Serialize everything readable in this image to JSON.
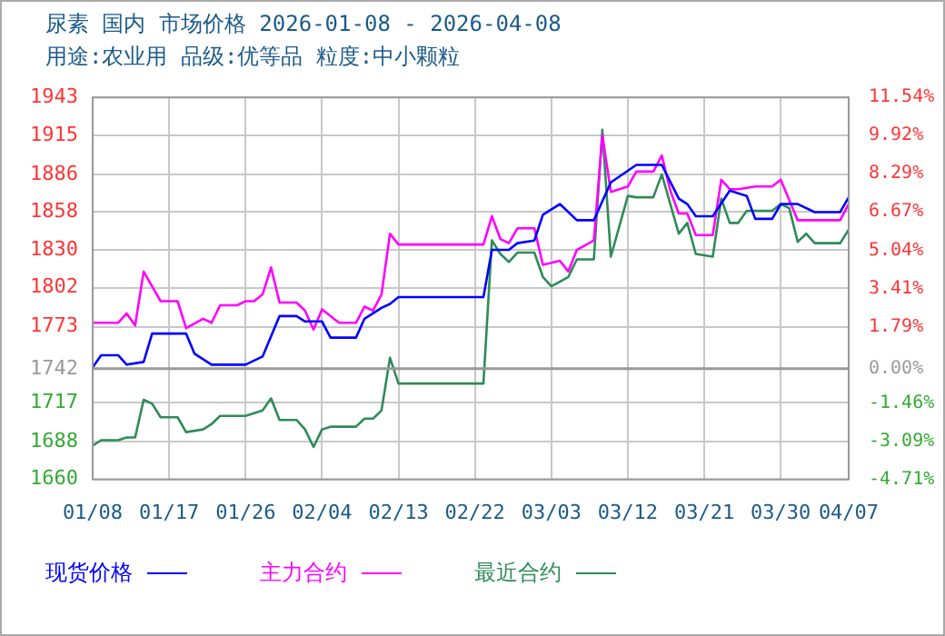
{
  "chart_data": {
    "type": "line",
    "title": "尿素 国内 市场价格 2026-01-08 - 2026-04-08",
    "subtitle": "用途:农业用 品级:优等品 粒度:中小颗粒",
    "xlim": [
      "2026-01-08",
      "2026-04-07"
    ],
    "xticks": [
      {
        "value": "2026-01-08",
        "label": "01/08"
      },
      {
        "value": "2026-01-17",
        "label": "01/17"
      },
      {
        "value": "2026-01-26",
        "label": "01/26"
      },
      {
        "value": "2026-02-04",
        "label": "02/04"
      },
      {
        "value": "2026-02-13",
        "label": "02/13"
      },
      {
        "value": "2026-02-22",
        "label": "02/22"
      },
      {
        "value": "2026-03-03",
        "label": "03/03"
      },
      {
        "value": "2026-03-12",
        "label": "03/12"
      },
      {
        "value": "2026-03-21",
        "label": "03/21"
      },
      {
        "value": "2026-03-30",
        "label": "03/30"
      },
      {
        "value": "2026-04-07",
        "label": "04/07"
      }
    ],
    "ylim": [
      1660,
      1943
    ],
    "yticks": [
      1660,
      1688,
      1717,
      1742,
      1773,
      1802,
      1830,
      1858,
      1886,
      1915,
      1943
    ],
    "y2lim": [
      -4.71,
      11.54
    ],
    "y2ticks": [
      {
        "value": -4.71,
        "label": "-4.71%"
      },
      {
        "value": -3.09,
        "label": "-3.09%"
      },
      {
        "value": -1.46,
        "label": "-1.46%"
      },
      {
        "value": 0,
        "label": "0.00%"
      },
      {
        "value": 1.79,
        "label": "1.79%"
      },
      {
        "value": 3.41,
        "label": "3.41%"
      },
      {
        "value": 5.04,
        "label": "5.04%"
      },
      {
        "value": 6.67,
        "label": "6.67%"
      },
      {
        "value": 8.29,
        "label": "8.29%"
      },
      {
        "value": 9.92,
        "label": "9.92%"
      },
      {
        "value": 11.54,
        "label": "11.54%"
      }
    ],
    "ref_lines": [
      {
        "axis": "y",
        "value": 1742,
        "color": "#999999"
      }
    ],
    "grid": true,
    "legend": "bottom",
    "marker": "none",
    "line_style": "solid",
    "series": [
      {
        "name": "现货价格",
        "color": "#0000ff",
        "x": [
          "2026-01-08",
          "2026-01-09",
          "2026-01-11",
          "2026-01-12",
          "2026-01-14",
          "2026-01-15",
          "2026-01-19",
          "2026-01-20",
          "2026-01-22",
          "2026-01-26",
          "2026-01-28",
          "2026-01-30",
          "2026-02-01",
          "2026-02-02",
          "2026-02-04",
          "2026-02-05",
          "2026-02-08",
          "2026-02-09",
          "2026-02-11",
          "2026-02-12",
          "2026-02-13",
          "2026-02-23",
          "2026-02-24",
          "2026-02-26",
          "2026-02-27",
          "2026-03-01",
          "2026-03-02",
          "2026-03-04",
          "2026-03-06",
          "2026-03-08",
          "2026-03-10",
          "2026-03-13",
          "2026-03-16",
          "2026-03-18",
          "2026-03-19",
          "2026-03-20",
          "2026-03-22",
          "2026-03-24",
          "2026-03-26",
          "2026-03-27",
          "2026-03-29",
          "2026-03-30",
          "2026-04-01",
          "2026-04-03",
          "2026-04-06",
          "2026-04-07"
        ],
        "values": [
          1743,
          1752,
          1752,
          1745,
          1747,
          1768,
          1768,
          1753,
          1745,
          1745,
          1751,
          1781,
          1781,
          1777,
          1777,
          1765,
          1765,
          1779,
          1787,
          1790,
          1795,
          1795,
          1830,
          1830,
          1835,
          1837,
          1856,
          1864,
          1852,
          1852,
          1880,
          1893,
          1893,
          1868,
          1864,
          1855,
          1855,
          1874,
          1870,
          1853,
          1853,
          1864,
          1864,
          1858,
          1858,
          1869
        ]
      },
      {
        "name": "主力合约",
        "color": "#ff00ff",
        "x": [
          "2026-01-08",
          "2026-01-11",
          "2026-01-12",
          "2026-01-13",
          "2026-01-14",
          "2026-01-16",
          "2026-01-18",
          "2026-01-19",
          "2026-01-21",
          "2026-01-22",
          "2026-01-23",
          "2026-01-25",
          "2026-01-26",
          "2026-01-27",
          "2026-01-28",
          "2026-01-29",
          "2026-01-30",
          "2026-02-01",
          "2026-02-02",
          "2026-02-03",
          "2026-02-04",
          "2026-02-06",
          "2026-02-08",
          "2026-02-09",
          "2026-02-10",
          "2026-02-11",
          "2026-02-12",
          "2026-02-13",
          "2026-02-23",
          "2026-02-24",
          "2026-02-25",
          "2026-02-26",
          "2026-02-27",
          "2026-03-01",
          "2026-03-02",
          "2026-03-04",
          "2026-03-05",
          "2026-03-06",
          "2026-03-08",
          "2026-03-09",
          "2026-03-10",
          "2026-03-12",
          "2026-03-13",
          "2026-03-15",
          "2026-03-16",
          "2026-03-17",
          "2026-03-18",
          "2026-03-19",
          "2026-03-20",
          "2026-03-22",
          "2026-03-23",
          "2026-03-24",
          "2026-03-25",
          "2026-03-27",
          "2026-03-29",
          "2026-03-30",
          "2026-04-01",
          "2026-04-06",
          "2026-04-07"
        ],
        "values": [
          1776,
          1776,
          1783,
          1774,
          1814,
          1792,
          1792,
          1772,
          1779,
          1776,
          1789,
          1789,
          1792,
          1792,
          1797,
          1817,
          1791,
          1791,
          1785,
          1771,
          1786,
          1776,
          1776,
          1788,
          1785,
          1797,
          1842,
          1834,
          1834,
          1855,
          1838,
          1835,
          1846,
          1846,
          1819,
          1822,
          1814,
          1830,
          1837,
          1915,
          1873,
          1877,
          1888,
          1888,
          1900,
          1874,
          1857,
          1857,
          1841,
          1841,
          1882,
          1875,
          1875,
          1877,
          1877,
          1882,
          1852,
          1852,
          1864
        ]
      },
      {
        "name": "最近合约",
        "color": "#2e8b57",
        "x": [
          "2026-01-08",
          "2026-01-09",
          "2026-01-11",
          "2026-01-12",
          "2026-01-13",
          "2026-01-14",
          "2026-01-15",
          "2026-01-16",
          "2026-01-18",
          "2026-01-19",
          "2026-01-21",
          "2026-01-22",
          "2026-01-23",
          "2026-01-26",
          "2026-01-28",
          "2026-01-29",
          "2026-01-30",
          "2026-02-01",
          "2026-02-02",
          "2026-02-03",
          "2026-02-04",
          "2026-02-05",
          "2026-02-08",
          "2026-02-09",
          "2026-02-10",
          "2026-02-11",
          "2026-02-12",
          "2026-02-13",
          "2026-02-23",
          "2026-02-24",
          "2026-02-25",
          "2026-02-26",
          "2026-02-27",
          "2026-03-01",
          "2026-03-02",
          "2026-03-03",
          "2026-03-05",
          "2026-03-06",
          "2026-03-08",
          "2026-03-09",
          "2026-03-10",
          "2026-03-12",
          "2026-03-13",
          "2026-03-15",
          "2026-03-16",
          "2026-03-18",
          "2026-03-19",
          "2026-03-20",
          "2026-03-22",
          "2026-03-23",
          "2026-03-24",
          "2026-03-25",
          "2026-03-26",
          "2026-03-29",
          "2026-03-30",
          "2026-03-31",
          "2026-04-01",
          "2026-04-02",
          "2026-04-03",
          "2026-04-06",
          "2026-04-07"
        ],
        "values": [
          1685,
          1689,
          1689,
          1691,
          1691,
          1719,
          1716,
          1706,
          1706,
          1695,
          1697,
          1701,
          1707,
          1707,
          1711,
          1720,
          1704,
          1704,
          1697,
          1684,
          1697,
          1699,
          1699,
          1705,
          1705,
          1711,
          1750,
          1731,
          1731,
          1837,
          1827,
          1821,
          1828,
          1828,
          1810,
          1803,
          1810,
          1823,
          1823,
          1919,
          1825,
          1870,
          1869,
          1869,
          1886,
          1842,
          1850,
          1827,
          1825,
          1868,
          1850,
          1850,
          1859,
          1859,
          1864,
          1861,
          1836,
          1842,
          1835,
          1835,
          1845
        ]
      }
    ]
  }
}
